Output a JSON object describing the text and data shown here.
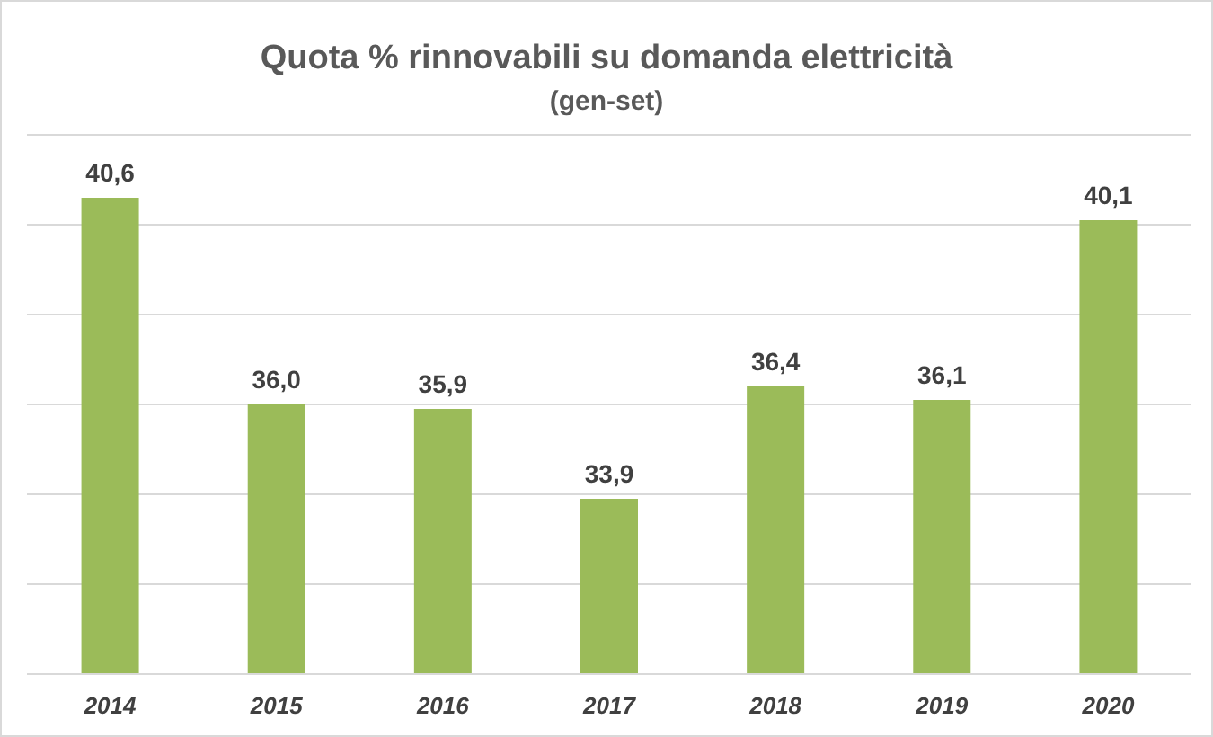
{
  "chart_data": {
    "type": "bar",
    "title": "Quota % rinnovabili su domanda elettricità",
    "subtitle": "(gen-set)",
    "categories": [
      "2014",
      "2015",
      "2016",
      "2017",
      "2018",
      "2019",
      "2020"
    ],
    "values": [
      40.6,
      36.0,
      35.9,
      33.9,
      36.4,
      36.1,
      40.1
    ],
    "value_labels": [
      "40,6",
      "36,0",
      "35,9",
      "33,9",
      "36,4",
      "36,1",
      "40,1"
    ],
    "color": "#9bbb59",
    "ylim": [
      30,
      42
    ],
    "yticks": [
      {
        "value": 30,
        "label": null
      },
      {
        "value": 32,
        "label": null
      },
      {
        "value": 34,
        "label": null
      },
      {
        "value": 36,
        "label": null
      },
      {
        "value": 38,
        "label": null
      },
      {
        "value": 40,
        "label": null
      },
      {
        "value": 42,
        "label": null
      }
    ],
    "tick_labels": "x",
    "grid": "y"
  }
}
